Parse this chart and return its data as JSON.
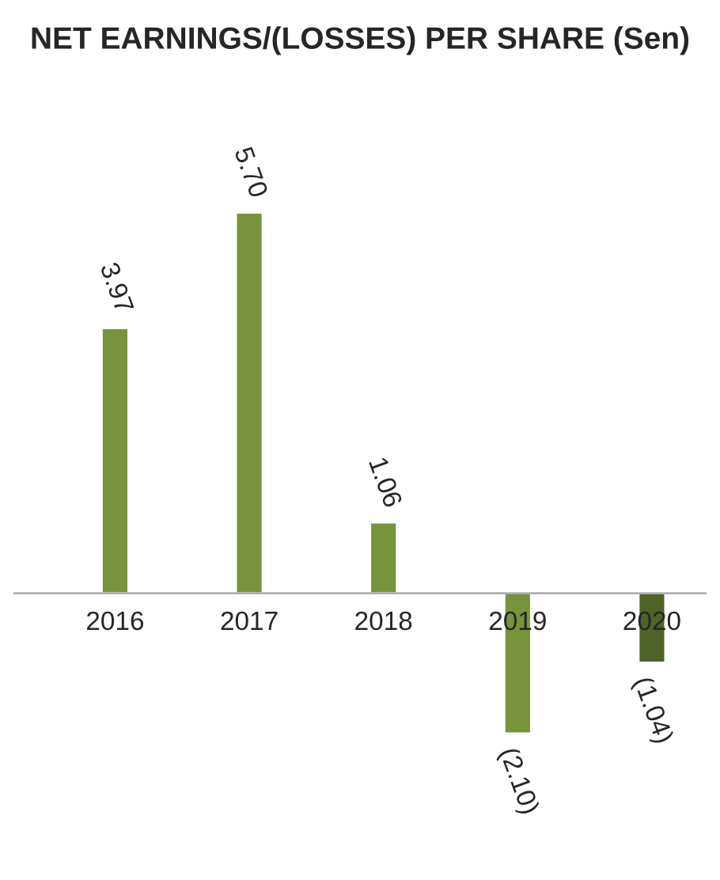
{
  "chart_data": {
    "type": "bar",
    "title": "NET EARNINGS/(LOSSES) PER SHARE (Sen)",
    "categories": [
      "2016",
      "2017",
      "2018",
      "2019",
      "2020"
    ],
    "values": [
      3.97,
      5.7,
      1.06,
      -2.1,
      -1.04
    ],
    "value_labels": [
      "3.97",
      "5.70",
      "1.06",
      "(2.10)",
      "(1.04)"
    ],
    "colors": [
      "#77933c",
      "#77933c",
      "#77933c",
      "#77933c",
      "#4f6228"
    ],
    "grid": false,
    "legend": false
  }
}
